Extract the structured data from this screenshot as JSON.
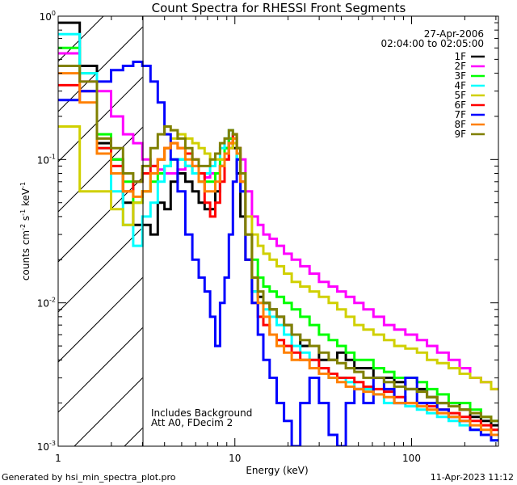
{
  "chart_data": {
    "type": "line",
    "title": "Count Spectra for RHESSI Front Segments",
    "xlabel": "Energy (keV)",
    "ylabel": "counts cm",
    "ylabel_parts": {
      "base": "counts cm",
      "sup1": "-2",
      "mid": " s",
      "sup2": "-1",
      "mid2": " keV",
      "sup3": "-1"
    },
    "xscale": "log",
    "yscale": "log",
    "xlim": [
      1,
      310
    ],
    "ylim": [
      0.001,
      1
    ],
    "x_tick_labels": [
      "1",
      "10",
      "100"
    ],
    "x_ticks": [
      1,
      10,
      100
    ],
    "y_ticks": [
      1,
      0.1,
      0.01,
      0.001
    ],
    "y_tick_labels": [
      {
        "base": "10",
        "exp": "0"
      },
      {
        "base": "10",
        "exp": "-1"
      },
      {
        "base": "10",
        "exp": "-2"
      },
      {
        "base": "10",
        "exp": "-3"
      }
    ],
    "date": "27-Apr-2006",
    "time_range": "02:04:00 to 02:05:00",
    "annotations": [
      "Includes Background",
      "Att A0, FDecim 2"
    ],
    "hatched_region_keV": [
      1,
      3
    ],
    "legend_position": "top-right",
    "energy": [
      1.17,
      1.5,
      1.83,
      2.17,
      2.5,
      2.83,
      3.17,
      3.5,
      3.83,
      4.17,
      4.5,
      5,
      5.5,
      6,
      6.5,
      7,
      7.5,
      8,
      8.5,
      9,
      9.5,
      10,
      10.5,
      11,
      12,
      13,
      14,
      15,
      16.5,
      18,
      20,
      22,
      25,
      28,
      32,
      36,
      40,
      45,
      50,
      57,
      65,
      75,
      85,
      100,
      115,
      130,
      150,
      175,
      200,
      230,
      265,
      300
    ],
    "series": [
      {
        "name": "1F",
        "color": "#000000",
        "values": [
          0.9,
          0.45,
          0.13,
          0.1,
          0.05,
          0.035,
          0.035,
          0.03,
          0.05,
          0.045,
          0.07,
          0.08,
          0.07,
          0.06,
          0.05,
          0.045,
          0.045,
          0.06,
          0.09,
          0.12,
          0.14,
          0.12,
          0.08,
          0.04,
          0.02,
          0.012,
          0.011,
          0.01,
          0.009,
          0.008,
          0.007,
          0.006,
          0.005,
          0.005,
          0.004,
          0.004,
          0.0045,
          0.004,
          0.0035,
          0.0035,
          0.003,
          0.003,
          0.0028,
          0.0025,
          0.0025,
          0.0022,
          0.002,
          0.002,
          0.0018,
          0.0016,
          0.0015,
          0.0014
        ]
      },
      {
        "name": "2F",
        "color": "#ff00ff",
        "values": [
          0.55,
          0.35,
          0.3,
          0.2,
          0.15,
          0.13,
          0.1,
          0.09,
          0.085,
          0.08,
          0.08,
          0.085,
          0.09,
          0.09,
          0.08,
          0.075,
          0.08,
          0.08,
          0.09,
          0.1,
          0.12,
          0.14,
          0.12,
          0.1,
          0.06,
          0.04,
          0.035,
          0.03,
          0.028,
          0.025,
          0.022,
          0.02,
          0.018,
          0.016,
          0.014,
          0.013,
          0.012,
          0.011,
          0.01,
          0.009,
          0.008,
          0.007,
          0.0065,
          0.006,
          0.0055,
          0.005,
          0.0045,
          0.004,
          0.0035,
          0.003,
          0.0028,
          0.0025
        ]
      },
      {
        "name": "3F",
        "color": "#00ff00",
        "values": [
          0.6,
          0.4,
          0.15,
          0.1,
          0.07,
          0.05,
          0.06,
          0.07,
          0.08,
          0.09,
          0.1,
          0.1,
          0.09,
          0.08,
          0.07,
          0.07,
          0.07,
          0.08,
          0.1,
          0.12,
          0.14,
          0.15,
          0.12,
          0.08,
          0.03,
          0.02,
          0.015,
          0.013,
          0.012,
          0.011,
          0.01,
          0.009,
          0.008,
          0.007,
          0.006,
          0.0055,
          0.005,
          0.0045,
          0.004,
          0.004,
          0.0035,
          0.0033,
          0.003,
          0.003,
          0.0028,
          0.0025,
          0.0023,
          0.002,
          0.002,
          0.0018,
          0.0016,
          0.0015
        ]
      },
      {
        "name": "4F",
        "color": "#00ffff",
        "values": [
          0.75,
          0.4,
          0.12,
          0.06,
          0.035,
          0.025,
          0.04,
          0.05,
          0.07,
          0.09,
          0.1,
          0.1,
          0.09,
          0.08,
          0.08,
          0.08,
          0.09,
          0.1,
          0.12,
          0.14,
          0.16,
          0.14,
          0.1,
          0.06,
          0.02,
          0.012,
          0.01,
          0.009,
          0.008,
          0.007,
          0.006,
          0.005,
          0.0045,
          0.004,
          0.0035,
          0.003,
          0.003,
          0.0028,
          0.0025,
          0.0025,
          0.0023,
          0.002,
          0.002,
          0.0019,
          0.0018,
          0.0017,
          0.0016,
          0.0015,
          0.0014,
          0.0013,
          0.0012,
          0.0011
        ]
      },
      {
        "name": "5F",
        "color": "#d0d000",
        "values": [
          0.17,
          0.06,
          0.06,
          0.045,
          0.035,
          0.05,
          0.06,
          0.08,
          0.1,
          0.12,
          0.14,
          0.15,
          0.14,
          0.13,
          0.12,
          0.11,
          0.1,
          0.1,
          0.1,
          0.11,
          0.12,
          0.13,
          0.11,
          0.08,
          0.04,
          0.03,
          0.025,
          0.022,
          0.02,
          0.018,
          0.016,
          0.014,
          0.013,
          0.012,
          0.011,
          0.01,
          0.009,
          0.008,
          0.007,
          0.0065,
          0.006,
          0.0055,
          0.005,
          0.0048,
          0.0045,
          0.004,
          0.0038,
          0.0035,
          0.0032,
          0.003,
          0.0028,
          0.0025
        ]
      },
      {
        "name": "6F",
        "color": "#ff0000",
        "values": [
          0.33,
          0.3,
          0.12,
          0.09,
          0.06,
          0.07,
          0.08,
          0.09,
          0.1,
          0.12,
          0.13,
          0.12,
          0.11,
          0.1,
          0.08,
          0.05,
          0.04,
          0.05,
          0.07,
          0.1,
          0.13,
          0.15,
          0.12,
          0.07,
          0.02,
          0.01,
          0.008,
          0.007,
          0.006,
          0.0055,
          0.005,
          0.0045,
          0.004,
          0.004,
          0.0035,
          0.0032,
          0.003,
          0.003,
          0.0028,
          0.0026,
          0.0025,
          0.0024,
          0.0022,
          0.002,
          0.002,
          0.0019,
          0.0018,
          0.0017,
          0.0016,
          0.0015,
          0.0014,
          0.0013
        ]
      },
      {
        "name": "7F",
        "color": "#0000ff",
        "values": [
          0.26,
          0.3,
          0.35,
          0.42,
          0.45,
          0.48,
          0.45,
          0.35,
          0.25,
          0.15,
          0.1,
          0.06,
          0.03,
          0.02,
          0.015,
          0.012,
          0.008,
          0.005,
          0.01,
          0.015,
          0.03,
          0.07,
          0.1,
          0.06,
          0.02,
          0.01,
          0.006,
          0.004,
          0.003,
          0.002,
          0.0015,
          0.001,
          0.002,
          0.003,
          0.002,
          0.0012,
          0.001,
          0.002,
          0.0025,
          0.002,
          0.003,
          0.0025,
          0.002,
          0.003,
          0.002,
          0.002,
          0.0018,
          0.0016,
          0.0015,
          0.0013,
          0.0012,
          0.0011
        ]
      },
      {
        "name": "8F",
        "color": "#ff8000",
        "values": [
          0.4,
          0.25,
          0.11,
          0.08,
          0.06,
          0.055,
          0.06,
          0.08,
          0.1,
          0.12,
          0.13,
          0.12,
          0.1,
          0.09,
          0.07,
          0.06,
          0.06,
          0.07,
          0.09,
          0.11,
          0.13,
          0.14,
          0.11,
          0.07,
          0.03,
          0.015,
          0.01,
          0.008,
          0.006,
          0.005,
          0.0045,
          0.004,
          0.004,
          0.0035,
          0.0032,
          0.003,
          0.0028,
          0.0026,
          0.0025,
          0.0024,
          0.0023,
          0.0022,
          0.002,
          0.002,
          0.0019,
          0.0018,
          0.0017,
          0.0016,
          0.0015,
          0.0014,
          0.0013,
          0.0012
        ]
      },
      {
        "name": "9F",
        "color": "#808000",
        "values": [
          0.45,
          0.35,
          0.14,
          0.12,
          0.08,
          0.07,
          0.09,
          0.12,
          0.15,
          0.17,
          0.16,
          0.14,
          0.12,
          0.1,
          0.09,
          0.09,
          0.1,
          0.11,
          0.13,
          0.14,
          0.16,
          0.15,
          0.12,
          0.08,
          0.03,
          0.015,
          0.012,
          0.01,
          0.009,
          0.008,
          0.007,
          0.006,
          0.0055,
          0.005,
          0.0045,
          0.004,
          0.0038,
          0.0035,
          0.0033,
          0.003,
          0.003,
          0.0028,
          0.0026,
          0.0025,
          0.0024,
          0.0022,
          0.002,
          0.0019,
          0.0018,
          0.0017,
          0.0016,
          0.0015
        ]
      }
    ]
  },
  "footer": {
    "generated_by": "Generated by hsi_min_spectra_plot.pro",
    "timestamp": "11-Apr-2023 11:12"
  }
}
